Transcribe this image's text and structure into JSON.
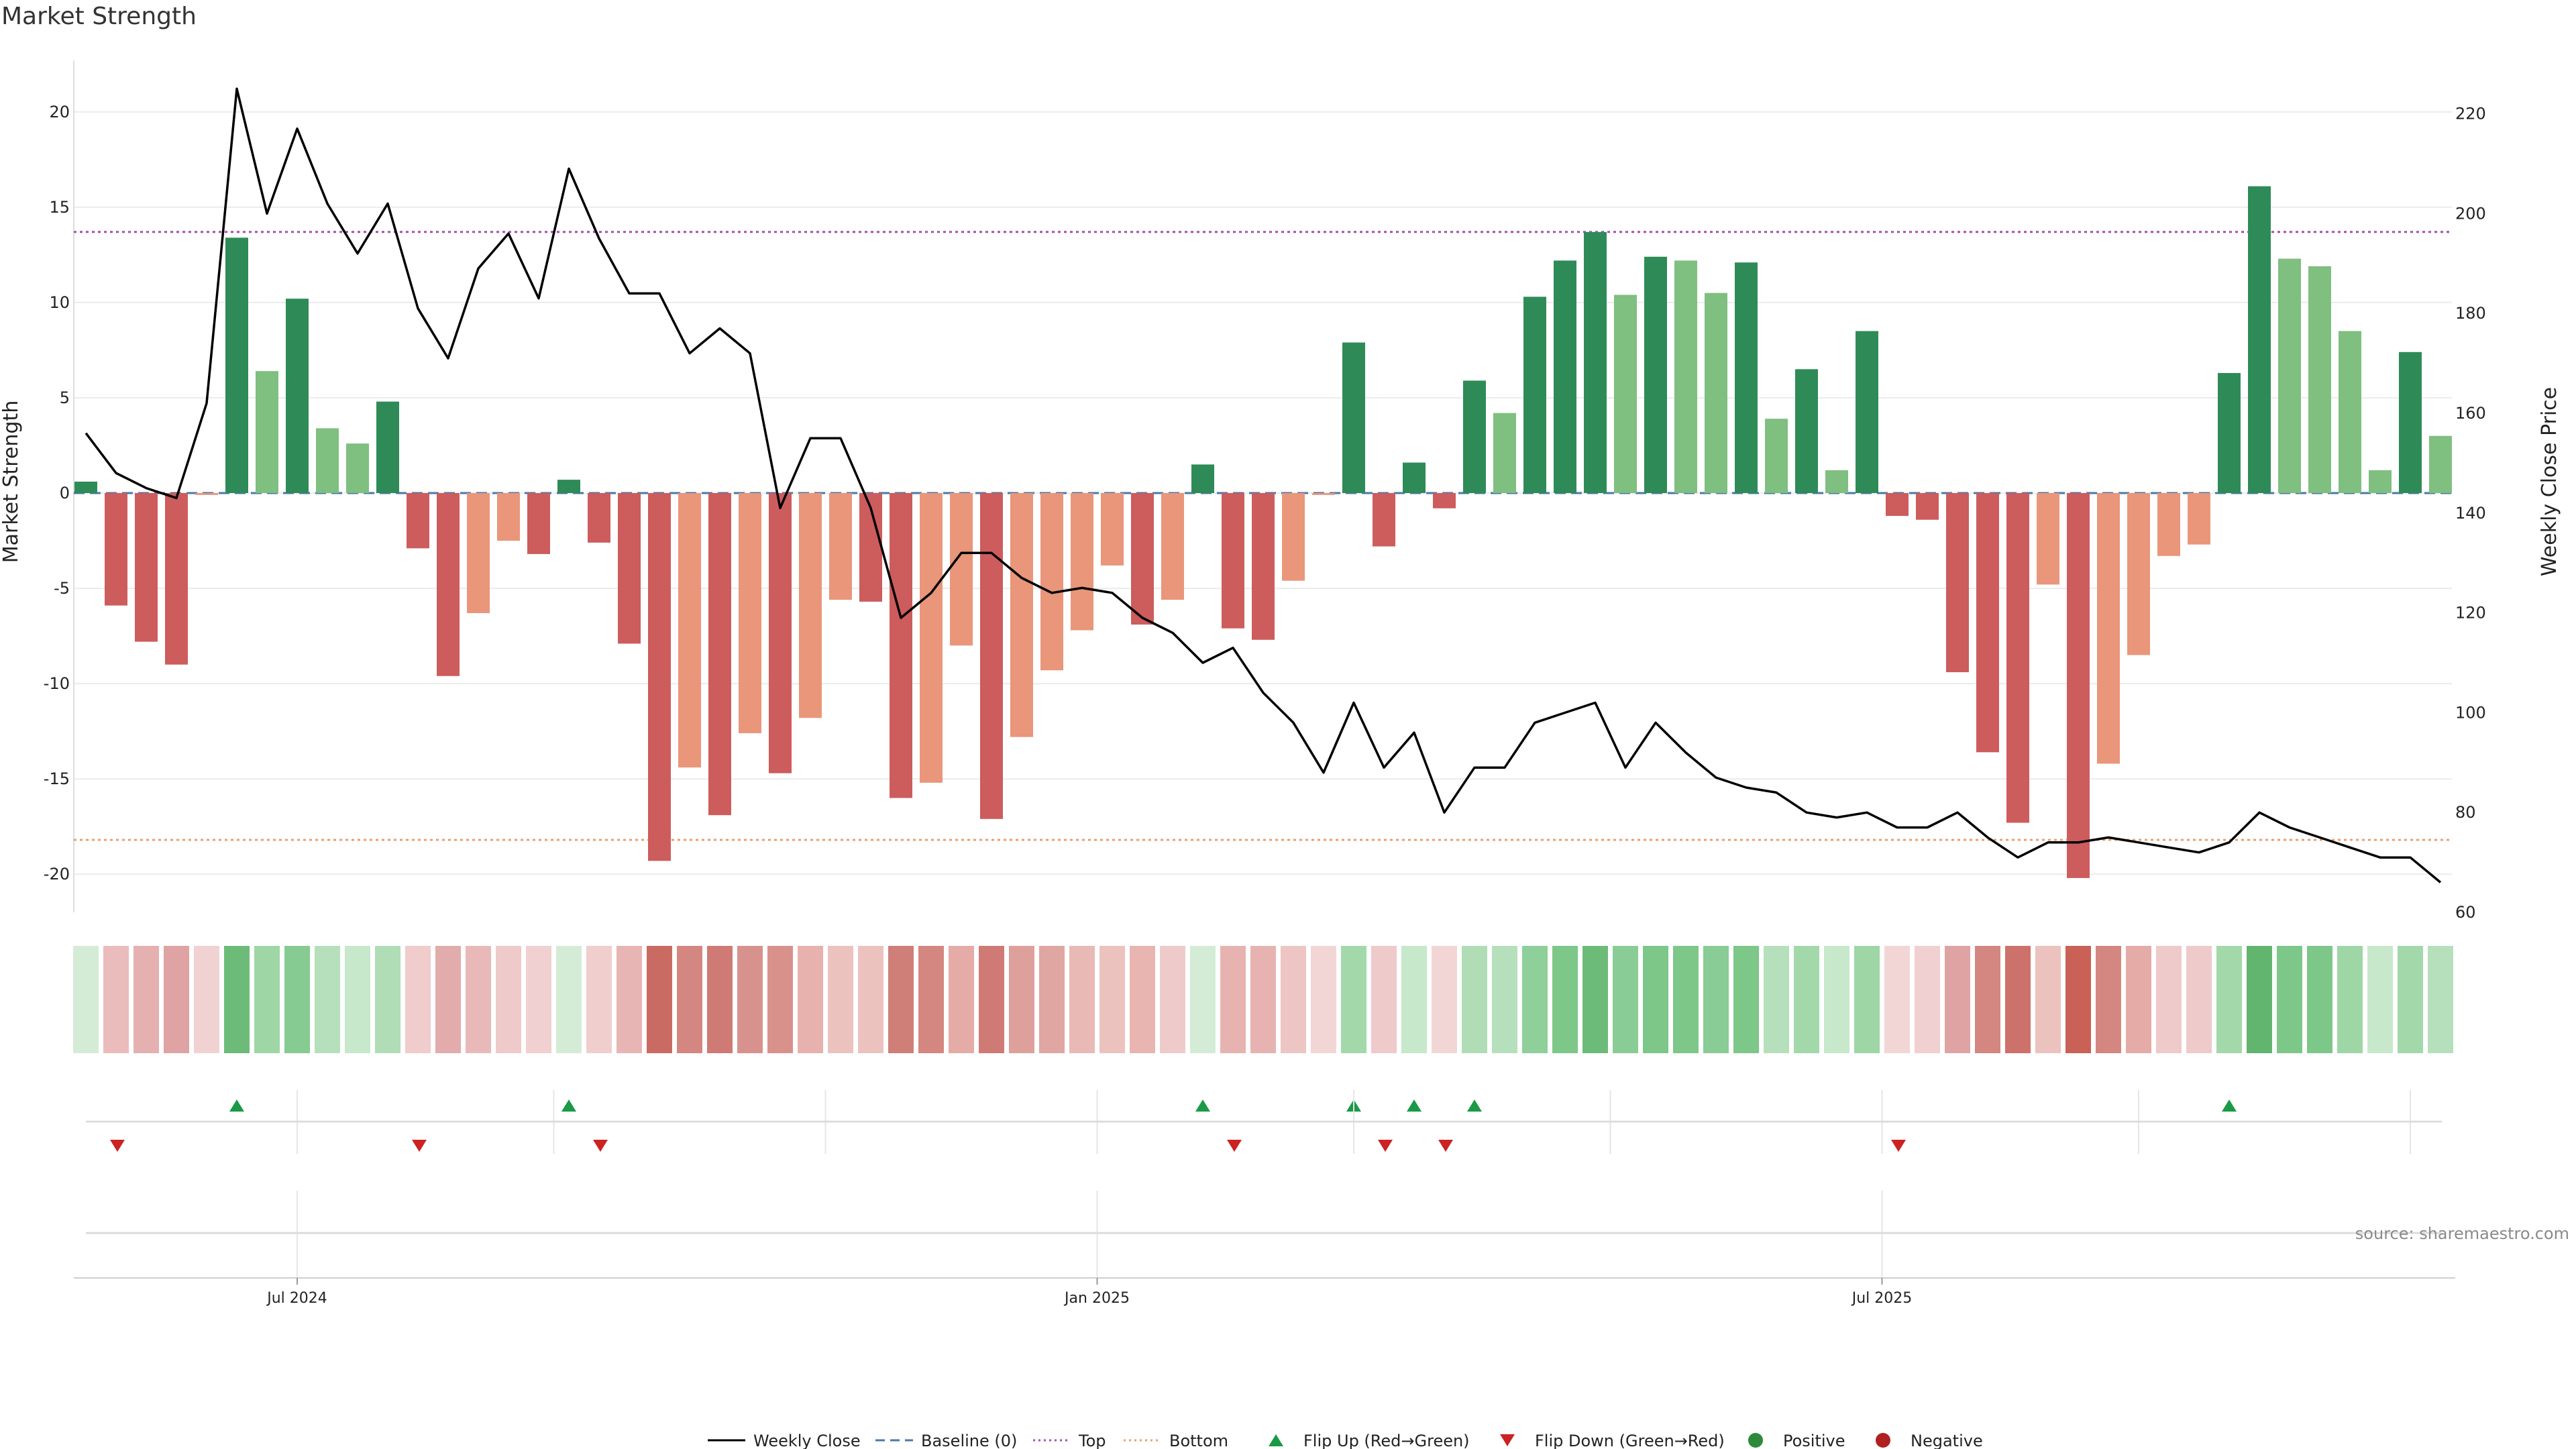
{
  "chart_data": {
    "type": "bar",
    "title": "Market Strength",
    "ylabel": "Market Strength",
    "y2label": "Weekly Close Price",
    "ylim": [
      -22,
      22
    ],
    "y2lim": [
      60,
      228
    ],
    "yticks": [
      20,
      15,
      10,
      5,
      0,
      -5,
      -10,
      -15,
      -20
    ],
    "y2ticks": [
      220,
      200,
      180,
      160,
      140,
      120,
      100,
      80,
      60
    ],
    "top_level": 13.7,
    "bottom_level": -18.2,
    "x_ticks": [
      {
        "label": "Jul 2024",
        "week": 7
      },
      {
        "label": "Jan 2025",
        "week": 33.5
      },
      {
        "label": "Jul 2025",
        "week": 59.5
      }
    ],
    "source": "source: sharemaestro.com",
    "series": [
      {
        "name": "Market Strength",
        "kind": "bar",
        "values": [
          0.6,
          -5.9,
          -7.8,
          -9.0,
          -0.1,
          13.4,
          6.4,
          10.2,
          3.4,
          2.6,
          4.8,
          -2.9,
          -9.6,
          -6.3,
          -2.5,
          -3.2,
          0.7,
          -2.6,
          -7.9,
          -19.3,
          -14.4,
          -16.9,
          -12.6,
          -14.7,
          -11.8,
          -5.6,
          -5.7,
          -16.0,
          -15.2,
          -8.0,
          -17.1,
          -12.8,
          -9.3,
          -7.2,
          -3.8,
          -6.9,
          -5.6,
          1.5,
          -7.1,
          -7.7,
          -4.6,
          -0.1,
          7.9,
          -2.8,
          1.6,
          -0.8,
          5.9,
          4.2,
          10.3,
          12.2,
          13.7,
          10.4,
          12.4,
          12.2,
          10.5,
          12.1,
          3.9,
          6.5,
          1.2,
          8.5,
          -1.2,
          -1.4,
          -9.4,
          -13.6,
          -17.3,
          -4.8,
          -20.2,
          -14.2,
          -8.5,
          -3.3,
          -2.7,
          6.3,
          16.1,
          12.3,
          11.9,
          8.5,
          1.2,
          7.4,
          3.0
        ]
      },
      {
        "name": "Weekly Close",
        "kind": "line",
        "values": [
          156,
          148,
          145,
          143,
          162,
          225,
          200,
          217,
          202,
          192,
          202,
          181,
          171,
          189,
          196,
          183,
          209,
          195,
          184,
          184,
          172,
          177,
          172,
          141,
          155,
          155,
          141,
          119,
          124,
          132,
          132,
          127,
          124,
          125,
          124,
          119,
          116,
          110,
          113,
          104,
          98,
          88,
          102,
          89,
          96,
          80,
          89,
          89,
          98,
          100,
          102,
          89,
          98,
          92,
          87,
          85,
          84,
          80,
          79,
          80,
          77,
          77,
          80,
          75,
          71,
          74,
          74,
          75,
          74,
          73,
          72,
          74,
          80,
          77,
          75,
          73,
          71,
          71,
          66
        ]
      }
    ],
    "heat_strip": [
      "#d4ecd6",
      "#ebbcbc",
      "#e5b0b0",
      "#dfa3a3",
      "#f0d2d2",
      "#6dbb78",
      "#9ed6a5",
      "#86cb91",
      "#b5e0bb",
      "#c7e8cb",
      "#b0ddb6",
      "#f0cccc",
      "#e2acac",
      "#e9b9b9",
      "#efcaca",
      "#f0d0d0",
      "#d4ecd6",
      "#f0cece",
      "#e8b5b5",
      "#c96b62",
      "#d48780",
      "#cf7a74",
      "#d8928d",
      "#d9918b",
      "#e7b1ad",
      "#ecc2bf",
      "#ecc2bf",
      "#d07e78",
      "#d48780",
      "#e5aba7",
      "#cf7a74",
      "#dda09b",
      "#e0a6a1",
      "#e9b9b5",
      "#ecc2bf",
      "#e8b5b1",
      "#efcaca",
      "#d4ecd6",
      "#e7b3b0",
      "#e7b3b0",
      "#edc6c3",
      "#f2d6d6",
      "#a3d8aa",
      "#efcaca",
      "#c7e8cb",
      "#f2d6d6",
      "#b0ddb6",
      "#b5e0bb",
      "#8fcf99",
      "#7dc789",
      "#6dbb78",
      "#8acc95",
      "#7dc789",
      "#7dc789",
      "#8acc95",
      "#7dc789",
      "#b5e0bb",
      "#a3d8aa",
      "#c7e8cb",
      "#9ed6a5",
      "#f2d6d6",
      "#f0d0d0",
      "#dfa3a3",
      "#d48780",
      "#cd726a",
      "#ecc2bf",
      "#c96157",
      "#d48780",
      "#e5aba7",
      "#efcaca",
      "#efcaca",
      "#a3d8aa",
      "#62b56f",
      "#7dc789",
      "#7dc789",
      "#9ed6a5",
      "#c7e8cb",
      "#a3d8aa",
      "#b5e0bb"
    ],
    "flips_up": [
      5,
      16,
      37,
      42,
      44,
      46,
      71
    ],
    "flips_down": [
      1,
      11,
      17,
      38,
      43,
      45,
      60
    ]
  },
  "legend": [
    {
      "label": "Weekly Close",
      "symbol": "line",
      "color": "#000000"
    },
    {
      "label": "Baseline (0)",
      "symbol": "dash",
      "color": "#4a78a8"
    },
    {
      "label": "Top",
      "symbol": "dot",
      "color": "#a64fb0"
    },
    {
      "label": "Bottom",
      "symbol": "dot",
      "color": "#e8a070"
    },
    {
      "label": "Flip Up (Red→Green)",
      "symbol": "tri-up",
      "color": "#1a9a45"
    },
    {
      "label": "Flip Down (Green→Red)",
      "symbol": "tri-down",
      "color": "#cc2222"
    },
    {
      "label": "Positive",
      "symbol": "circle",
      "color": "#2e8a3a"
    },
    {
      "label": "Negative",
      "symbol": "circle",
      "color": "#b02020"
    }
  ],
  "colors": {
    "pos_dark": "#2e8b57",
    "pos_light": "#7fbf7f",
    "neg_dark": "#cd5c5c",
    "neg_light": "#e9967a"
  }
}
